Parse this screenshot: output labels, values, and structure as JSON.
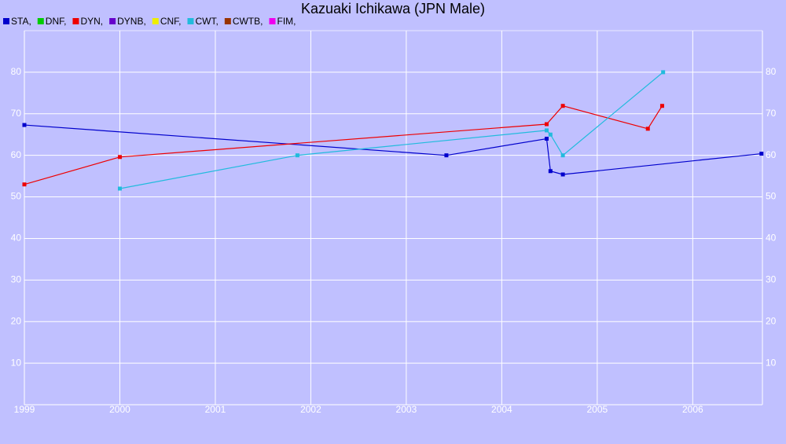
{
  "chart_data": {
    "type": "line",
    "title": "Kazuaki Ichikawa (JPN Male)",
    "xlim": [
      1999,
      2006.73
    ],
    "xticks": [
      1999,
      2000,
      2001,
      2002,
      2003,
      2004,
      2005,
      2006
    ],
    "ylim": [
      0,
      90
    ],
    "yticks": [
      10,
      20,
      30,
      40,
      50,
      60,
      70,
      80
    ],
    "grid": true,
    "legend": "top-left",
    "series": [
      {
        "name": "STA,",
        "color": "#0000cc",
        "x": [
          1999.0,
          2003.42,
          2004.47,
          2004.51,
          2004.64,
          2006.72
        ],
        "values": [
          67.3,
          60,
          64,
          56.2,
          55.4,
          60.4
        ]
      },
      {
        "name": "DNF,",
        "color": "#00cc00",
        "x": [],
        "values": []
      },
      {
        "name": "DYN,",
        "color": "#ee0000",
        "x": [
          1999.0,
          2000.0,
          2004.47,
          2004.64,
          2005.53,
          2005.68
        ],
        "values": [
          53,
          59.6,
          67.5,
          71.9,
          66.4,
          71.9
        ]
      },
      {
        "name": "DYNB,",
        "color": "#6600cc",
        "x": [],
        "values": []
      },
      {
        "name": "CNF,",
        "color": "#eeee00",
        "x": [],
        "values": []
      },
      {
        "name": "CWT,",
        "color": "#22bbdd",
        "x": [
          2000.0,
          2001.86,
          2004.47,
          2004.51,
          2004.64,
          2005.69
        ],
        "values": [
          52,
          60,
          66,
          65,
          60,
          80
        ]
      },
      {
        "name": "CWTB,",
        "color": "#993300",
        "x": [],
        "values": []
      },
      {
        "name": "FIM,",
        "color": "#ee00ee",
        "x": [],
        "values": []
      }
    ]
  }
}
